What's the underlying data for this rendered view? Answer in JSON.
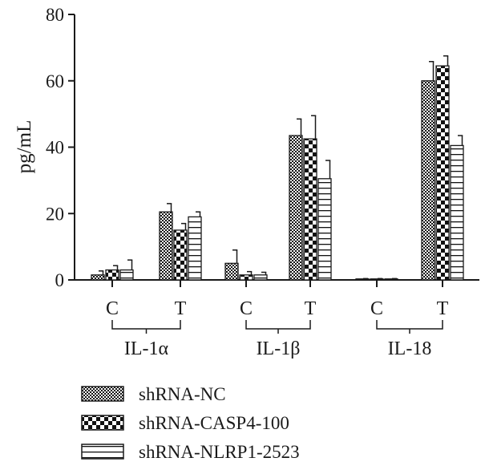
{
  "chart_data": {
    "type": "bar",
    "ylabel": "pg/mL",
    "ylim": [
      0,
      80
    ],
    "yticks": [
      0,
      20,
      40,
      60,
      80
    ],
    "groups": [
      {
        "label": "IL-1α",
        "subcategories": [
          "C",
          "T"
        ]
      },
      {
        "label": "IL-1β",
        "subcategories": [
          "C",
          "T"
        ]
      },
      {
        "label": "IL-18",
        "subcategories": [
          "C",
          "T"
        ]
      }
    ],
    "series": [
      {
        "name": "shRNA-NC",
        "pattern": "checker-fine",
        "values": [
          1.5,
          20.5,
          5.0,
          43.5,
          0.3,
          60.0
        ],
        "errors": [
          1.2,
          2.5,
          4.0,
          5.0,
          0.1,
          5.8
        ]
      },
      {
        "name": "shRNA-CASP4-100",
        "pattern": "checker-coarse",
        "values": [
          3.0,
          15.0,
          1.5,
          42.5,
          0.3,
          64.5
        ],
        "errors": [
          1.3,
          2.0,
          1.0,
          7.0,
          0.1,
          3.0
        ]
      },
      {
        "name": "shRNA-NLRP1-2523",
        "pattern": "horizontal-stripes",
        "values": [
          3.0,
          19.0,
          1.5,
          30.5,
          0.3,
          40.5
        ],
        "errors": [
          3.0,
          1.5,
          0.8,
          5.5,
          0.1,
          3.0
        ]
      }
    ],
    "legend_position": "bottom-left",
    "grid": false
  }
}
